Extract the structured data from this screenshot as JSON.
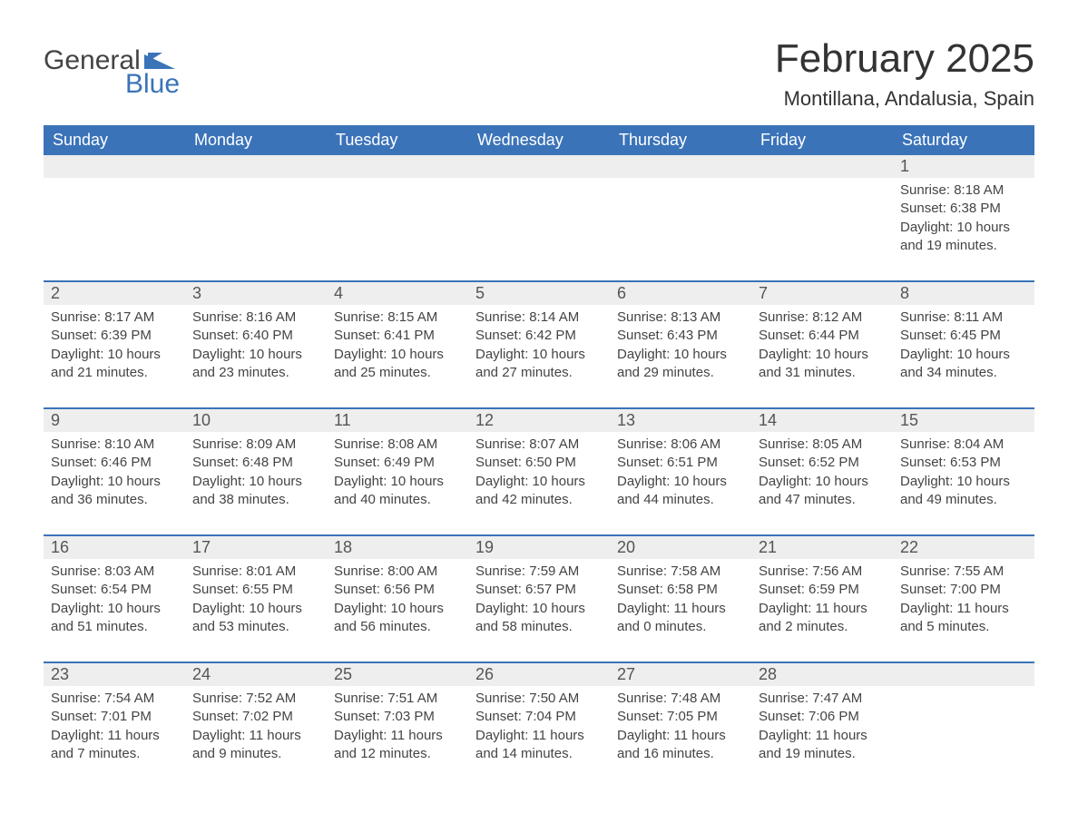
{
  "logo": {
    "text1": "General",
    "text2": "Blue",
    "accent_color": "#3b73b9"
  },
  "title": "February 2025",
  "location": "Montillana, Andalusia, Spain",
  "colors": {
    "header_bg": "#3b73b9",
    "header_text": "#ffffff",
    "daynum_bg": "#eeeeee",
    "text": "#333333",
    "rule": "#3b73b9"
  },
  "day_headers": [
    "Sunday",
    "Monday",
    "Tuesday",
    "Wednesday",
    "Thursday",
    "Friday",
    "Saturday"
  ],
  "weeks": [
    [
      null,
      null,
      null,
      null,
      null,
      null,
      {
        "n": "1",
        "sunrise": "Sunrise: 8:18 AM",
        "sunset": "Sunset: 6:38 PM",
        "d1": "Daylight: 10 hours",
        "d2": "and 19 minutes."
      }
    ],
    [
      {
        "n": "2",
        "sunrise": "Sunrise: 8:17 AM",
        "sunset": "Sunset: 6:39 PM",
        "d1": "Daylight: 10 hours",
        "d2": "and 21 minutes."
      },
      {
        "n": "3",
        "sunrise": "Sunrise: 8:16 AM",
        "sunset": "Sunset: 6:40 PM",
        "d1": "Daylight: 10 hours",
        "d2": "and 23 minutes."
      },
      {
        "n": "4",
        "sunrise": "Sunrise: 8:15 AM",
        "sunset": "Sunset: 6:41 PM",
        "d1": "Daylight: 10 hours",
        "d2": "and 25 minutes."
      },
      {
        "n": "5",
        "sunrise": "Sunrise: 8:14 AM",
        "sunset": "Sunset: 6:42 PM",
        "d1": "Daylight: 10 hours",
        "d2": "and 27 minutes."
      },
      {
        "n": "6",
        "sunrise": "Sunrise: 8:13 AM",
        "sunset": "Sunset: 6:43 PM",
        "d1": "Daylight: 10 hours",
        "d2": "and 29 minutes."
      },
      {
        "n": "7",
        "sunrise": "Sunrise: 8:12 AM",
        "sunset": "Sunset: 6:44 PM",
        "d1": "Daylight: 10 hours",
        "d2": "and 31 minutes."
      },
      {
        "n": "8",
        "sunrise": "Sunrise: 8:11 AM",
        "sunset": "Sunset: 6:45 PM",
        "d1": "Daylight: 10 hours",
        "d2": "and 34 minutes."
      }
    ],
    [
      {
        "n": "9",
        "sunrise": "Sunrise: 8:10 AM",
        "sunset": "Sunset: 6:46 PM",
        "d1": "Daylight: 10 hours",
        "d2": "and 36 minutes."
      },
      {
        "n": "10",
        "sunrise": "Sunrise: 8:09 AM",
        "sunset": "Sunset: 6:48 PM",
        "d1": "Daylight: 10 hours",
        "d2": "and 38 minutes."
      },
      {
        "n": "11",
        "sunrise": "Sunrise: 8:08 AM",
        "sunset": "Sunset: 6:49 PM",
        "d1": "Daylight: 10 hours",
        "d2": "and 40 minutes."
      },
      {
        "n": "12",
        "sunrise": "Sunrise: 8:07 AM",
        "sunset": "Sunset: 6:50 PM",
        "d1": "Daylight: 10 hours",
        "d2": "and 42 minutes."
      },
      {
        "n": "13",
        "sunrise": "Sunrise: 8:06 AM",
        "sunset": "Sunset: 6:51 PM",
        "d1": "Daylight: 10 hours",
        "d2": "and 44 minutes."
      },
      {
        "n": "14",
        "sunrise": "Sunrise: 8:05 AM",
        "sunset": "Sunset: 6:52 PM",
        "d1": "Daylight: 10 hours",
        "d2": "and 47 minutes."
      },
      {
        "n": "15",
        "sunrise": "Sunrise: 8:04 AM",
        "sunset": "Sunset: 6:53 PM",
        "d1": "Daylight: 10 hours",
        "d2": "and 49 minutes."
      }
    ],
    [
      {
        "n": "16",
        "sunrise": "Sunrise: 8:03 AM",
        "sunset": "Sunset: 6:54 PM",
        "d1": "Daylight: 10 hours",
        "d2": "and 51 minutes."
      },
      {
        "n": "17",
        "sunrise": "Sunrise: 8:01 AM",
        "sunset": "Sunset: 6:55 PM",
        "d1": "Daylight: 10 hours",
        "d2": "and 53 minutes."
      },
      {
        "n": "18",
        "sunrise": "Sunrise: 8:00 AM",
        "sunset": "Sunset: 6:56 PM",
        "d1": "Daylight: 10 hours",
        "d2": "and 56 minutes."
      },
      {
        "n": "19",
        "sunrise": "Sunrise: 7:59 AM",
        "sunset": "Sunset: 6:57 PM",
        "d1": "Daylight: 10 hours",
        "d2": "and 58 minutes."
      },
      {
        "n": "20",
        "sunrise": "Sunrise: 7:58 AM",
        "sunset": "Sunset: 6:58 PM",
        "d1": "Daylight: 11 hours",
        "d2": "and 0 minutes."
      },
      {
        "n": "21",
        "sunrise": "Sunrise: 7:56 AM",
        "sunset": "Sunset: 6:59 PM",
        "d1": "Daylight: 11 hours",
        "d2": "and 2 minutes."
      },
      {
        "n": "22",
        "sunrise": "Sunrise: 7:55 AM",
        "sunset": "Sunset: 7:00 PM",
        "d1": "Daylight: 11 hours",
        "d2": "and 5 minutes."
      }
    ],
    [
      {
        "n": "23",
        "sunrise": "Sunrise: 7:54 AM",
        "sunset": "Sunset: 7:01 PM",
        "d1": "Daylight: 11 hours",
        "d2": "and 7 minutes."
      },
      {
        "n": "24",
        "sunrise": "Sunrise: 7:52 AM",
        "sunset": "Sunset: 7:02 PM",
        "d1": "Daylight: 11 hours",
        "d2": "and 9 minutes."
      },
      {
        "n": "25",
        "sunrise": "Sunrise: 7:51 AM",
        "sunset": "Sunset: 7:03 PM",
        "d1": "Daylight: 11 hours",
        "d2": "and 12 minutes."
      },
      {
        "n": "26",
        "sunrise": "Sunrise: 7:50 AM",
        "sunset": "Sunset: 7:04 PM",
        "d1": "Daylight: 11 hours",
        "d2": "and 14 minutes."
      },
      {
        "n": "27",
        "sunrise": "Sunrise: 7:48 AM",
        "sunset": "Sunset: 7:05 PM",
        "d1": "Daylight: 11 hours",
        "d2": "and 16 minutes."
      },
      {
        "n": "28",
        "sunrise": "Sunrise: 7:47 AM",
        "sunset": "Sunset: 7:06 PM",
        "d1": "Daylight: 11 hours",
        "d2": "and 19 minutes."
      },
      null
    ]
  ]
}
